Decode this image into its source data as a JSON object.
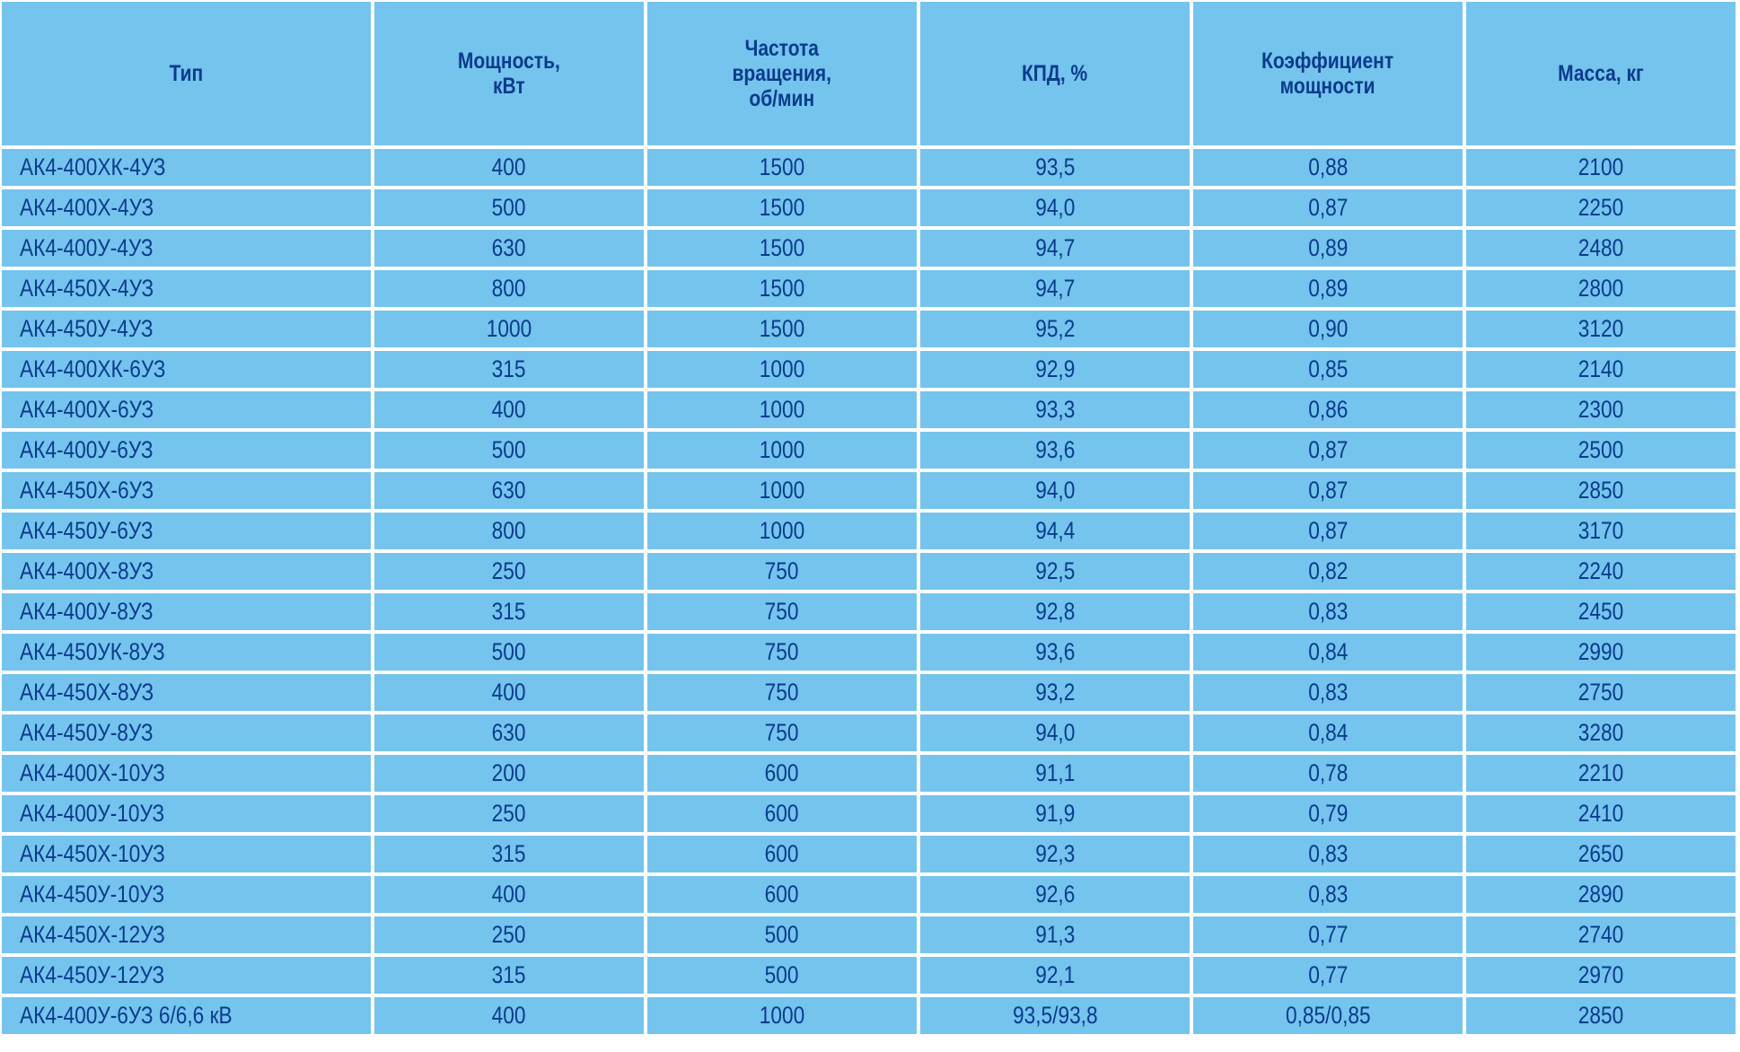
{
  "headers": [
    "Тип",
    "Мощность,\nкВт",
    "Частота\nвращения,\nоб/мин",
    "КПД, %",
    "Коэффициент\nмощности",
    "Масса, кг"
  ],
  "rows": [
    [
      "АК4-400ХК-4УЗ",
      "400",
      "1500",
      "93,5",
      "0,88",
      "2100"
    ],
    [
      "АК4-400Х-4УЗ",
      "500",
      "1500",
      "94,0",
      "0,87",
      "2250"
    ],
    [
      "АК4-400У-4УЗ",
      "630",
      "1500",
      "94,7",
      "0,89",
      "2480"
    ],
    [
      "АК4-450Х-4УЗ",
      "800",
      "1500",
      "94,7",
      "0,89",
      "2800"
    ],
    [
      "АК4-450У-4УЗ",
      "1000",
      "1500",
      "95,2",
      "0,90",
      "3120"
    ],
    [
      "АК4-400ХК-6УЗ",
      "315",
      "1000",
      "92,9",
      "0,85",
      "2140"
    ],
    [
      "АК4-400Х-6УЗ",
      "400",
      "1000",
      "93,3",
      "0,86",
      "2300"
    ],
    [
      "АК4-400У-6УЗ",
      "500",
      "1000",
      "93,6",
      "0,87",
      "2500"
    ],
    [
      "АК4-450Х-6УЗ",
      "630",
      "1000",
      "94,0",
      "0,87",
      "2850"
    ],
    [
      "АК4-450У-6УЗ",
      "800",
      "1000",
      "94,4",
      "0,87",
      "3170"
    ],
    [
      "АК4-400Х-8УЗ",
      "250",
      "750",
      "92,5",
      "0,82",
      "2240"
    ],
    [
      "АК4-400У-8УЗ",
      "315",
      "750",
      "92,8",
      "0,83",
      "2450"
    ],
    [
      "АК4-450УК-8УЗ",
      "500",
      "750",
      "93,6",
      "0,84",
      "2990"
    ],
    [
      "АК4-450Х-8УЗ",
      "400",
      "750",
      "93,2",
      "0,83",
      "2750"
    ],
    [
      "АК4-450У-8УЗ",
      "630",
      "750",
      "94,0",
      "0,84",
      "3280"
    ],
    [
      "АК4-400Х-10УЗ",
      "200",
      "600",
      "91,1",
      "0,78",
      "2210"
    ],
    [
      "АК4-400У-10УЗ",
      "250",
      "600",
      "91,9",
      "0,79",
      "2410"
    ],
    [
      "АК4-450Х-10УЗ",
      "315",
      "600",
      "92,3",
      "0,83",
      "2650"
    ],
    [
      "АК4-450У-10УЗ",
      "400",
      "600",
      "92,6",
      "0,83",
      "2890"
    ],
    [
      "АК4-450Х-12УЗ",
      "250",
      "500",
      "91,3",
      "0,77",
      "2740"
    ],
    [
      "АК4-450У-12УЗ",
      "315",
      "500",
      "92,1",
      "0,77",
      "2970"
    ],
    [
      "АК4-400У-6УЗ 6/6,6 кВ",
      "400",
      "1000",
      "93,5/93,8",
      "0,85/0,85",
      "2850"
    ]
  ],
  "colors": {
    "cell_background": "#74c4ee",
    "text": "#0b3b8c",
    "grid": "#ffffff"
  }
}
